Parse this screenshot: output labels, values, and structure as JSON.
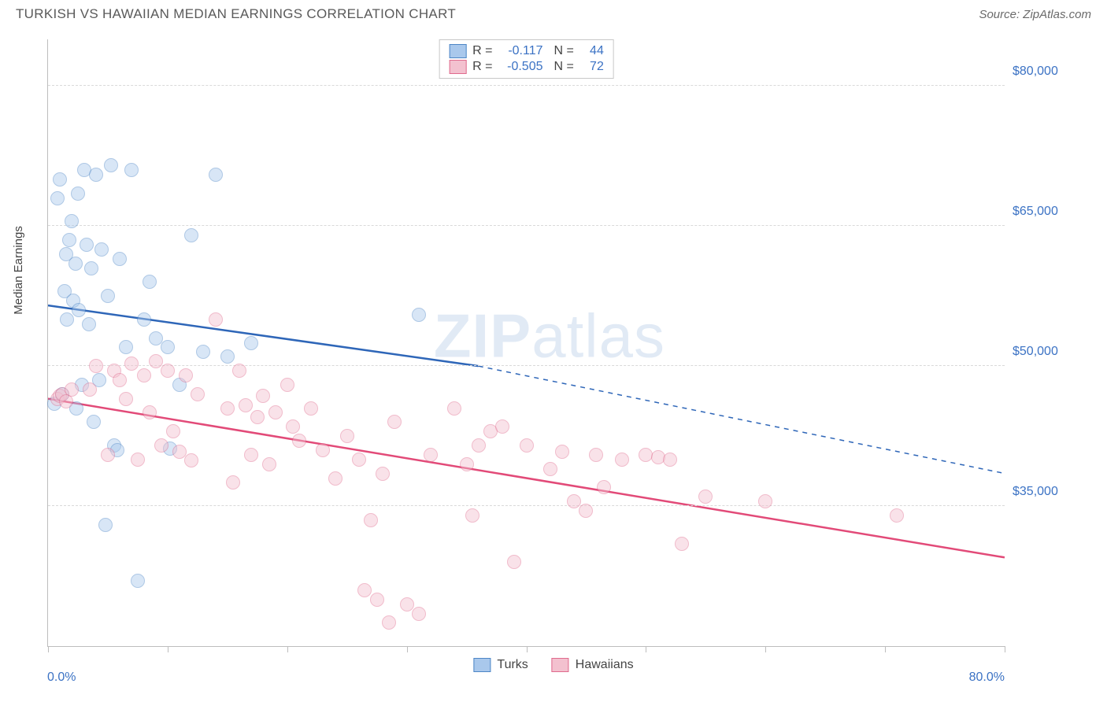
{
  "title": "TURKISH VS HAWAIIAN MEDIAN EARNINGS CORRELATION CHART",
  "source": "Source: ZipAtlas.com",
  "watermark_a": "ZIP",
  "watermark_b": "atlas",
  "chart": {
    "type": "scatter",
    "ylabel": "Median Earnings",
    "xlim": [
      0,
      80
    ],
    "ylim": [
      20000,
      85000
    ],
    "x_min_label": "0.0%",
    "x_max_label": "80.0%",
    "y_ticks": [
      35000,
      50000,
      65000,
      80000
    ],
    "y_tick_labels": [
      "$35,000",
      "$50,000",
      "$65,000",
      "$80,000"
    ],
    "x_tick_positions": [
      0,
      10,
      20,
      30,
      40,
      50,
      60,
      70,
      80
    ],
    "grid_color": "#d9d9d9",
    "axis_color": "#bdbdbd",
    "background_color": "#ffffff",
    "tick_label_color": "#3b72c4",
    "label_fontsize": 15,
    "tick_fontsize": 16,
    "marker_radius": 9,
    "marker_opacity": 0.45,
    "series": [
      {
        "name": "Turks",
        "color_fill": "#a9c8ec",
        "color_stroke": "#4d86c6",
        "line_color": "#2e66b8",
        "R": "-0.117",
        "N": "44",
        "trend": {
          "x1": 0,
          "y1": 56500,
          "x2_solid": 36,
          "y2_solid": 50000,
          "x2": 80,
          "y2": 38500
        },
        "points": [
          [
            0.5,
            46000
          ],
          [
            0.8,
            68000
          ],
          [
            1.0,
            70000
          ],
          [
            1.2,
            47000
          ],
          [
            1.4,
            58000
          ],
          [
            1.5,
            62000
          ],
          [
            1.6,
            55000
          ],
          [
            1.8,
            63500
          ],
          [
            2.0,
            65500
          ],
          [
            2.1,
            57000
          ],
          [
            2.3,
            61000
          ],
          [
            2.4,
            45500
          ],
          [
            2.5,
            68500
          ],
          [
            2.6,
            56000
          ],
          [
            2.8,
            48000
          ],
          [
            3.0,
            71000
          ],
          [
            3.2,
            63000
          ],
          [
            3.4,
            54500
          ],
          [
            3.6,
            60500
          ],
          [
            3.8,
            44000
          ],
          [
            4.0,
            70500
          ],
          [
            4.3,
            48500
          ],
          [
            4.5,
            62500
          ],
          [
            4.8,
            33000
          ],
          [
            5.0,
            57500
          ],
          [
            5.3,
            71500
          ],
          [
            5.5,
            41500
          ],
          [
            5.8,
            41000
          ],
          [
            6.0,
            61500
          ],
          [
            6.5,
            52000
          ],
          [
            7.0,
            71000
          ],
          [
            7.5,
            27000
          ],
          [
            8.0,
            55000
          ],
          [
            8.5,
            59000
          ],
          [
            9.0,
            53000
          ],
          [
            10.0,
            52000
          ],
          [
            10.2,
            41200
          ],
          [
            11.0,
            48000
          ],
          [
            12.0,
            64000
          ],
          [
            13.0,
            51500
          ],
          [
            14.0,
            70500
          ],
          [
            15.0,
            51000
          ],
          [
            17.0,
            52500
          ],
          [
            31.0,
            55500
          ]
        ]
      },
      {
        "name": "Hawaiians",
        "color_fill": "#f3c1cf",
        "color_stroke": "#e06a8d",
        "line_color": "#e24a78",
        "R": "-0.505",
        "N": "72",
        "trend": {
          "x1": 0,
          "y1": 46500,
          "x2_solid": 80,
          "y2_solid": 29500,
          "x2": 80,
          "y2": 29500
        },
        "points": [
          [
            0.8,
            46500
          ],
          [
            1.0,
            46800
          ],
          [
            1.2,
            47000
          ],
          [
            1.5,
            46200
          ],
          [
            2.0,
            47500
          ],
          [
            3.5,
            47500
          ],
          [
            4.0,
            50000
          ],
          [
            5.0,
            40500
          ],
          [
            5.5,
            49500
          ],
          [
            6.0,
            48500
          ],
          [
            6.5,
            46500
          ],
          [
            7.0,
            50300
          ],
          [
            7.5,
            40000
          ],
          [
            8.0,
            49000
          ],
          [
            8.5,
            45000
          ],
          [
            9.0,
            50500
          ],
          [
            9.5,
            41500
          ],
          [
            10.0,
            49500
          ],
          [
            10.5,
            43000
          ],
          [
            11.0,
            40800
          ],
          [
            11.5,
            49000
          ],
          [
            12.0,
            39900
          ],
          [
            12.5,
            47000
          ],
          [
            14.0,
            55000
          ],
          [
            15.0,
            45500
          ],
          [
            15.5,
            37500
          ],
          [
            16.0,
            49500
          ],
          [
            16.5,
            45800
          ],
          [
            17.0,
            40500
          ],
          [
            17.5,
            44500
          ],
          [
            18.0,
            46800
          ],
          [
            18.5,
            39500
          ],
          [
            19.0,
            45000
          ],
          [
            20.0,
            48000
          ],
          [
            20.5,
            43500
          ],
          [
            21.0,
            42000
          ],
          [
            22.0,
            45500
          ],
          [
            23.0,
            41000
          ],
          [
            24.0,
            38000
          ],
          [
            25.0,
            42500
          ],
          [
            26.0,
            40000
          ],
          [
            26.5,
            26000
          ],
          [
            27.0,
            33500
          ],
          [
            27.5,
            25000
          ],
          [
            28.0,
            38500
          ],
          [
            28.5,
            22500
          ],
          [
            29.0,
            44000
          ],
          [
            30.0,
            24500
          ],
          [
            31.0,
            23500
          ],
          [
            32.0,
            40500
          ],
          [
            34.0,
            45500
          ],
          [
            35.0,
            39500
          ],
          [
            35.5,
            34000
          ],
          [
            36.0,
            41500
          ],
          [
            37.0,
            43000
          ],
          [
            38.0,
            43500
          ],
          [
            39.0,
            29000
          ],
          [
            40.0,
            41500
          ],
          [
            42.0,
            39000
          ],
          [
            43.0,
            40800
          ],
          [
            44.0,
            35500
          ],
          [
            45.0,
            34500
          ],
          [
            45.8,
            40500
          ],
          [
            46.5,
            37000
          ],
          [
            48.0,
            40000
          ],
          [
            50.0,
            40500
          ],
          [
            51.0,
            40200
          ],
          [
            52.0,
            40000
          ],
          [
            53.0,
            31000
          ],
          [
            55.0,
            36000
          ],
          [
            60.0,
            35500
          ],
          [
            71.0,
            34000
          ]
        ]
      }
    ]
  },
  "stats_legend": {
    "r_label": "R =",
    "n_label": "N ="
  },
  "bottom_legend": {
    "items": [
      "Turks",
      "Hawaiians"
    ]
  }
}
